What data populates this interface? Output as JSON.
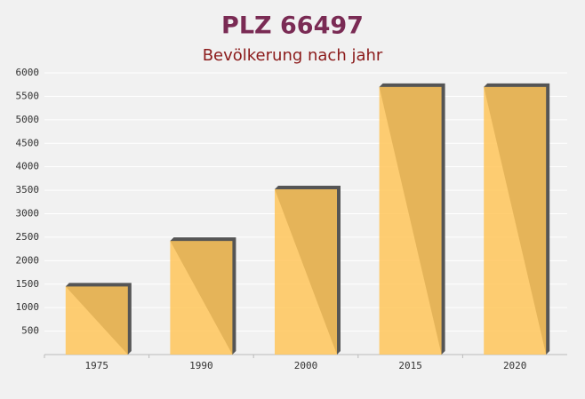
{
  "chart_data": {
    "type": "bar",
    "title": "PLZ 66497",
    "subtitle": "Bevölkerung nach jahr",
    "categories": [
      "1975",
      "1990",
      "2000",
      "2015",
      "2020"
    ],
    "values": [
      1450,
      2420,
      3520,
      5700,
      5700
    ],
    "color": "#ffc55a",
    "ylim": [
      0,
      6000
    ],
    "yticks": [
      500,
      1000,
      1500,
      2000,
      2500,
      3000,
      3500,
      4000,
      4500,
      5000,
      5500,
      6000
    ],
    "grid": true
  }
}
